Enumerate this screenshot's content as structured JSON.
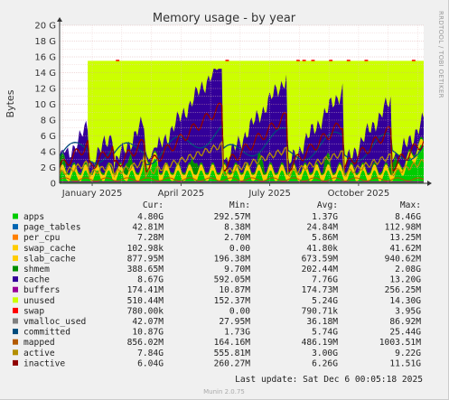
{
  "chart_data": {
    "type": "area",
    "title": "Memory usage - by year",
    "ylabel": "Bytes",
    "side_label": "RRDTOOL / TOBI OETIKER",
    "y_ticks": [
      "0",
      "2 G",
      "4 G",
      "6 G",
      "8 G",
      "10 G",
      "12 G",
      "14 G",
      "16 G",
      "18 G",
      "20 G"
    ],
    "ylim": [
      0,
      20
    ],
    "y_unit": "GiB",
    "x_ticks": [
      "January 2025",
      "April 2025",
      "July 2025",
      "October 2025"
    ],
    "x_tick_positions_months": [
      1.0,
      4.0,
      7.0,
      10.0
    ],
    "x_range_months": [
      -0.1,
      12.2
    ],
    "grid": true,
    "background_top_gib": 15.5,
    "column_headers": [
      "Cur:",
      "Min:",
      "Avg:",
      "Max:"
    ],
    "series": [
      {
        "name": "apps",
        "color": "#00cc00",
        "cur": "4.80G",
        "min": "292.57M",
        "avg": "1.37G",
        "max": "8.46G"
      },
      {
        "name": "page_tables",
        "color": "#0066b3",
        "cur": "42.81M",
        "min": "8.38M",
        "avg": "24.84M",
        "max": "112.98M"
      },
      {
        "name": "per_cpu",
        "color": "#ff8000",
        "cur": "7.28M",
        "min": "2.70M",
        "avg": "5.86M",
        "max": "13.25M"
      },
      {
        "name": "swap_cache",
        "color": "#ffcc00",
        "cur": "102.98k",
        "min": "0.00",
        "avg": "41.80k",
        "max": "41.62M"
      },
      {
        "name": "slab_cache",
        "color": "#ffcc00",
        "cur": "877.95M",
        "min": "196.38M",
        "avg": "673.59M",
        "max": "940.62M"
      },
      {
        "name": "shmem",
        "color": "#008f00",
        "cur": "388.65M",
        "min": "9.70M",
        "avg": "202.44M",
        "max": "2.08G"
      },
      {
        "name": "cache",
        "color": "#330099",
        "cur": "8.67G",
        "min": "592.05M",
        "avg": "7.76G",
        "max": "13.20G"
      },
      {
        "name": "buffers",
        "color": "#990099",
        "cur": "174.41M",
        "min": "10.87M",
        "avg": "174.73M",
        "max": "256.25M"
      },
      {
        "name": "unused",
        "color": "#ccff00",
        "cur": "510.44M",
        "min": "152.37M",
        "avg": "5.24G",
        "max": "14.30G"
      },
      {
        "name": "swap",
        "color": "#ff0000",
        "cur": "780.00k",
        "min": "0.00",
        "avg": "790.71k",
        "max": "3.95G"
      },
      {
        "name": "vmalloc_used",
        "color": "#808080",
        "cur": "42.07M",
        "min": "27.95M",
        "avg": "36.18M",
        "max": "86.92M"
      },
      {
        "name": "committed",
        "color": "#004b7c",
        "cur": "10.87G",
        "min": "1.73G",
        "avg": "5.74G",
        "max": "25.44G"
      },
      {
        "name": "mapped",
        "color": "#b35a00",
        "cur": "856.02M",
        "min": "164.16M",
        "avg": "486.19M",
        "max": "1003.51M"
      },
      {
        "name": "active",
        "color": "#b38f00",
        "cur": "7.84G",
        "min": "555.81M",
        "avg": "3.00G",
        "max": "9.22G"
      },
      {
        "name": "inactive",
        "color": "#8f0000",
        "cur": "6.04G",
        "min": "260.27M",
        "avg": "6.26G",
        "max": "11.51G"
      }
    ]
  },
  "footer": {
    "last_update": "Last update: Sat Dec  6 00:05:18 2025",
    "version": "Munin 2.0.75"
  }
}
